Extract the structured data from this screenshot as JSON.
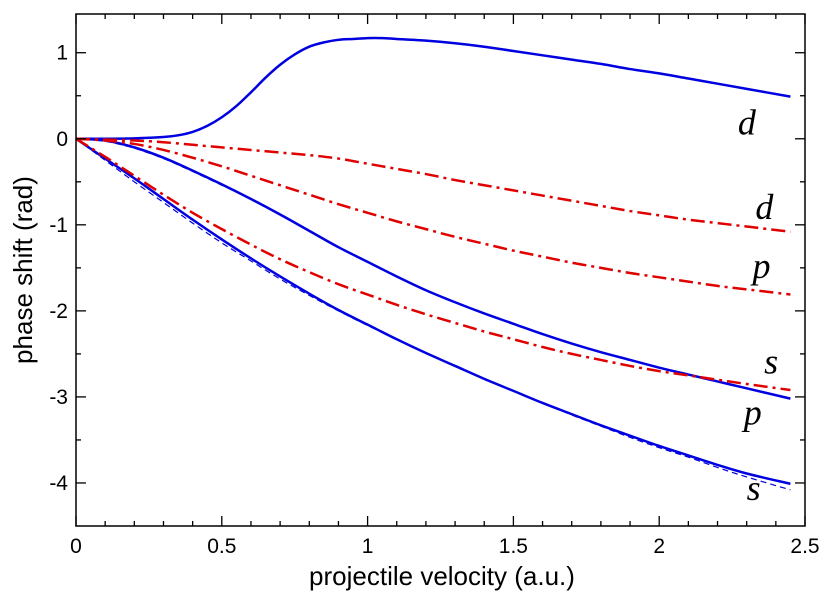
{
  "chart_data": {
    "type": "line",
    "xlabel": "projectile velocity (a.u.)",
    "ylabel": "phase shift (rad)",
    "xlim": [
      0,
      2.5
    ],
    "ylim": [
      -4.5,
      1.45
    ],
    "grid": false,
    "x_ticks": [
      {
        "value": 0,
        "label": "0"
      },
      {
        "value": 0.5,
        "label": "0.5"
      },
      {
        "value": 1,
        "label": "1"
      },
      {
        "value": 1.5,
        "label": "1.5"
      },
      {
        "value": 2,
        "label": "2"
      },
      {
        "value": 2.5,
        "label": "2.5"
      }
    ],
    "x_minor_step": 0.1,
    "y_ticks": [
      {
        "value": 1,
        "label": "1"
      },
      {
        "value": 0,
        "label": "0"
      },
      {
        "value": -1,
        "label": "-1"
      },
      {
        "value": -2,
        "label": "-2"
      },
      {
        "value": -3,
        "label": "-3"
      },
      {
        "value": -4,
        "label": "-4"
      }
    ],
    "y_minor_step": 0.5,
    "series": [
      {
        "id": "blue-d",
        "color": "#0000e0",
        "style": "solid",
        "width": 2.5,
        "x": [
          0,
          0.1,
          0.2,
          0.3,
          0.35,
          0.4,
          0.45,
          0.5,
          0.55,
          0.6,
          0.65,
          0.7,
          0.75,
          0.8,
          0.85,
          0.9,
          0.95,
          1.0,
          1.05,
          1.1,
          1.2,
          1.3,
          1.4,
          1.5,
          1.6,
          1.7,
          1.8,
          1.9,
          2.0,
          2.1,
          2.2,
          2.3,
          2.45
        ],
        "y": [
          0,
          0.0,
          0.005,
          0.02,
          0.04,
          0.08,
          0.15,
          0.25,
          0.38,
          0.54,
          0.71,
          0.86,
          0.98,
          1.07,
          1.12,
          1.15,
          1.16,
          1.17,
          1.17,
          1.16,
          1.14,
          1.11,
          1.07,
          1.02,
          0.97,
          0.92,
          0.87,
          0.81,
          0.76,
          0.7,
          0.64,
          0.58,
          0.49
        ]
      },
      {
        "id": "blue-p",
        "color": "#0000e0",
        "style": "solid",
        "width": 2.5,
        "x": [
          0,
          0.1,
          0.2,
          0.3,
          0.4,
          0.5,
          0.6,
          0.7,
          0.8,
          0.9,
          1.0,
          1.1,
          1.2,
          1.3,
          1.4,
          1.5,
          1.6,
          1.7,
          1.8,
          1.9,
          2.0,
          2.1,
          2.2,
          2.3,
          2.45
        ],
        "y": [
          0,
          -0.02,
          -0.1,
          -0.22,
          -0.37,
          -0.53,
          -0.7,
          -0.88,
          -1.07,
          -1.26,
          -1.43,
          -1.6,
          -1.76,
          -1.9,
          -2.03,
          -2.15,
          -2.27,
          -2.38,
          -2.48,
          -2.57,
          -2.66,
          -2.74,
          -2.82,
          -2.9,
          -3.02
        ]
      },
      {
        "id": "blue-s",
        "color": "#0000e0",
        "style": "solid",
        "width": 2.5,
        "x": [
          0,
          0.1,
          0.2,
          0.3,
          0.4,
          0.5,
          0.6,
          0.7,
          0.8,
          0.9,
          1.0,
          1.1,
          1.2,
          1.3,
          1.4,
          1.5,
          1.6,
          1.7,
          1.8,
          1.9,
          2.0,
          2.1,
          2.2,
          2.3,
          2.45
        ],
        "y": [
          0,
          -0.23,
          -0.46,
          -0.7,
          -0.94,
          -1.17,
          -1.39,
          -1.6,
          -1.8,
          -1.99,
          -2.16,
          -2.33,
          -2.49,
          -2.64,
          -2.79,
          -2.93,
          -3.07,
          -3.2,
          -3.33,
          -3.45,
          -3.57,
          -3.68,
          -3.79,
          -3.89,
          -4.01
        ]
      },
      {
        "id": "blue-s-dashed",
        "color": "#0000e0",
        "style": "dashed",
        "width": 1.2,
        "x": [
          0,
          0.1,
          0.2,
          0.3,
          0.4,
          0.5,
          0.6,
          0.7,
          0.8,
          0.9,
          1.0,
          1.1,
          1.2,
          1.3,
          1.4,
          1.5,
          1.6,
          1.7,
          1.8,
          1.9,
          2.0,
          2.1,
          2.2,
          2.3,
          2.45
        ],
        "y": [
          0,
          -0.25,
          -0.5,
          -0.74,
          -0.98,
          -1.21,
          -1.42,
          -1.63,
          -1.82,
          -2.0,
          -2.17,
          -2.33,
          -2.49,
          -2.64,
          -2.79,
          -2.93,
          -3.07,
          -3.21,
          -3.34,
          -3.47,
          -3.59,
          -3.7,
          -3.82,
          -3.93,
          -4.08
        ]
      },
      {
        "id": "blue-p-dashed",
        "color": "#0000e0",
        "style": "dashed",
        "width": 1.2,
        "x": [
          0,
          0.1,
          0.2,
          0.3,
          0.4,
          0.5,
          0.6,
          0.7
        ],
        "y": [
          0,
          -0.03,
          -0.11,
          -0.23,
          -0.38,
          -0.54,
          -0.7,
          -0.88
        ]
      },
      {
        "id": "red-d",
        "color": "#e00000",
        "style": "dashdot",
        "width": 2.5,
        "x": [
          0,
          0.1,
          0.2,
          0.3,
          0.4,
          0.5,
          0.6,
          0.7,
          0.8,
          0.9,
          1.0,
          1.1,
          1.2,
          1.3,
          1.4,
          1.5,
          1.6,
          1.7,
          1.8,
          1.9,
          2.0,
          2.1,
          2.2,
          2.3,
          2.45
        ],
        "y": [
          0,
          -0.01,
          -0.02,
          -0.04,
          -0.07,
          -0.1,
          -0.13,
          -0.16,
          -0.19,
          -0.23,
          -0.29,
          -0.35,
          -0.41,
          -0.48,
          -0.54,
          -0.6,
          -0.66,
          -0.72,
          -0.78,
          -0.84,
          -0.89,
          -0.94,
          -0.98,
          -1.02,
          -1.08
        ]
      },
      {
        "id": "red-p",
        "color": "#e00000",
        "style": "dashdot",
        "width": 2.5,
        "x": [
          0,
          0.1,
          0.2,
          0.3,
          0.4,
          0.5,
          0.6,
          0.7,
          0.8,
          0.9,
          1.0,
          1.1,
          1.2,
          1.3,
          1.4,
          1.5,
          1.6,
          1.7,
          1.8,
          1.9,
          2.0,
          2.1,
          2.2,
          2.3,
          2.45
        ],
        "y": [
          0,
          -0.02,
          -0.06,
          -0.13,
          -0.22,
          -0.32,
          -0.43,
          -0.54,
          -0.65,
          -0.76,
          -0.86,
          -0.96,
          -1.05,
          -1.14,
          -1.22,
          -1.3,
          -1.37,
          -1.44,
          -1.5,
          -1.56,
          -1.61,
          -1.66,
          -1.71,
          -1.75,
          -1.81
        ]
      },
      {
        "id": "red-s",
        "color": "#e00000",
        "style": "dashdot",
        "width": 2.5,
        "x": [
          0,
          0.1,
          0.2,
          0.3,
          0.4,
          0.5,
          0.6,
          0.7,
          0.8,
          0.9,
          1.0,
          1.1,
          1.2,
          1.3,
          1.4,
          1.5,
          1.6,
          1.7,
          1.8,
          1.9,
          2.0,
          2.1,
          2.2,
          2.3,
          2.45
        ],
        "y": [
          0,
          -0.21,
          -0.43,
          -0.65,
          -0.86,
          -1.05,
          -1.23,
          -1.4,
          -1.55,
          -1.69,
          -1.81,
          -1.93,
          -2.04,
          -2.14,
          -2.24,
          -2.33,
          -2.42,
          -2.5,
          -2.57,
          -2.64,
          -2.7,
          -2.75,
          -2.8,
          -2.85,
          -2.92
        ]
      }
    ],
    "annotations": [
      {
        "text": "d",
        "x": 2.27,
        "y": 0.05
      },
      {
        "text": "d",
        "x": 2.33,
        "y": -0.93
      },
      {
        "text": "p",
        "x": 2.32,
        "y": -1.62
      },
      {
        "text": "s",
        "x": 2.36,
        "y": -2.73
      },
      {
        "text": "p",
        "x": 2.29,
        "y": -3.32
      },
      {
        "text": "s",
        "x": 2.3,
        "y": -4.2
      }
    ]
  }
}
